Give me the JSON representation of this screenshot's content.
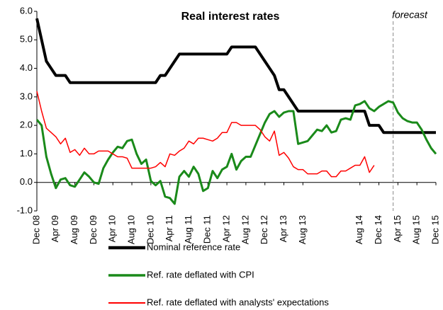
{
  "chart_data": {
    "type": "line",
    "title": "Real interest rates",
    "annotation": {
      "text": "forecast",
      "x": 75
    },
    "categories": [
      "Dec 08",
      null,
      null,
      null,
      "Apr 09",
      null,
      null,
      null,
      "Aug 09",
      null,
      null,
      null,
      "Dec 09",
      null,
      null,
      null,
      "Apr 10",
      null,
      null,
      null,
      "Aug 10",
      null,
      null,
      null,
      "Dec 10",
      null,
      null,
      null,
      "Apr 11",
      null,
      null,
      null,
      "Aug 11",
      null,
      null,
      null,
      "Dec 11",
      null,
      null,
      null,
      "Apr 12",
      null,
      null,
      null,
      "Aug 12",
      null,
      null,
      null,
      "Dec 12",
      null,
      null,
      null,
      "Apr 13",
      null,
      null,
      null,
      "Aug 13",
      null,
      null,
      null,
      null,
      null,
      null,
      null,
      null,
      null,
      null,
      null,
      "Aug 14",
      null,
      null,
      null,
      "Dec 14",
      null,
      null,
      null,
      "Apr 15",
      null,
      null,
      null,
      "Aug 15",
      null,
      null,
      null,
      "Dec 15"
    ],
    "series": [
      {
        "name": "Nominal reference rate",
        "color": "#000000",
        "width": 4,
        "values": [
          5.75,
          5.0,
          4.25,
          4.0,
          3.75,
          3.75,
          3.75,
          3.5,
          3.5,
          3.5,
          3.5,
          3.5,
          3.5,
          3.5,
          3.5,
          3.5,
          3.5,
          3.5,
          3.5,
          3.5,
          3.5,
          3.5,
          3.5,
          3.5,
          3.5,
          3.5,
          3.75,
          3.75,
          4.0,
          4.25,
          4.5,
          4.5,
          4.5,
          4.5,
          4.5,
          4.5,
          4.5,
          4.5,
          4.5,
          4.5,
          4.5,
          4.75,
          4.75,
          4.75,
          4.75,
          4.75,
          4.75,
          4.5,
          4.25,
          4.0,
          3.75,
          3.25,
          3.25,
          3.0,
          2.75,
          2.5,
          2.5,
          2.5,
          2.5,
          2.5,
          2.5,
          2.5,
          2.5,
          2.5,
          2.5,
          2.5,
          2.5,
          2.5,
          2.5,
          2.5,
          2.0,
          2.0,
          2.0,
          1.75,
          1.75,
          1.75,
          1.75,
          1.75,
          1.75,
          1.75,
          1.75,
          1.75,
          1.75,
          1.75,
          1.75
        ]
      },
      {
        "name": "Ref. rate deflated with CPI",
        "color": "#1a8a1a",
        "width": 3,
        "values": [
          2.2,
          2.0,
          0.9,
          0.3,
          -0.2,
          0.1,
          0.15,
          -0.1,
          -0.15,
          0.1,
          0.35,
          0.2,
          0.0,
          -0.05,
          0.5,
          0.8,
          1.05,
          1.25,
          1.2,
          1.45,
          1.5,
          1.0,
          0.65,
          0.8,
          0.05,
          -0.1,
          0.05,
          -0.5,
          -0.55,
          -0.75,
          0.2,
          0.4,
          0.2,
          0.55,
          0.3,
          -0.3,
          -0.2,
          0.4,
          0.15,
          0.45,
          0.55,
          1.0,
          0.45,
          0.75,
          0.9,
          0.9,
          1.3,
          1.7,
          2.1,
          2.4,
          2.5,
          2.3,
          2.45,
          2.5,
          2.5,
          1.35,
          1.4,
          1.45,
          1.65,
          1.85,
          1.8,
          2.0,
          1.75,
          1.8,
          2.2,
          2.25,
          2.2,
          2.7,
          2.75,
          2.85,
          2.6,
          2.5,
          2.65,
          2.75,
          2.85,
          2.8,
          2.45,
          2.25,
          2.15,
          2.1,
          2.1,
          1.85,
          1.5,
          1.2,
          1.0
        ]
      },
      {
        "name": "Ref. rate deflated with analysts' expectations",
        "color": "#ff0000",
        "width": 1.5,
        "values": [
          3.2,
          2.5,
          1.9,
          1.75,
          1.6,
          1.35,
          1.55,
          1.05,
          1.15,
          0.95,
          1.2,
          1.0,
          1.0,
          1.1,
          1.1,
          1.1,
          1.0,
          0.9,
          0.9,
          0.85,
          0.5,
          0.5,
          0.5,
          0.5,
          0.5,
          0.55,
          0.7,
          0.55,
          1.0,
          0.95,
          1.1,
          1.2,
          1.45,
          1.35,
          1.55,
          1.55,
          1.5,
          1.45,
          1.55,
          1.75,
          1.75,
          2.1,
          2.1,
          2.0,
          2.0,
          2.0,
          2.0,
          1.85,
          1.6,
          1.45,
          1.8,
          0.95,
          1.05,
          0.85,
          0.55,
          0.45,
          0.45,
          0.3,
          0.3,
          0.3,
          0.4,
          0.4,
          0.2,
          0.2,
          0.4,
          0.4,
          0.5,
          0.6,
          0.6,
          0.9,
          0.35,
          0.6,
          null,
          null,
          null,
          null,
          null,
          null,
          null,
          null,
          null,
          null,
          null,
          null,
          null
        ]
      }
    ],
    "ylim": [
      -1,
      6
    ],
    "yticks": [
      {
        "value": -1,
        "label": "-1.0"
      },
      {
        "value": 0,
        "label": "0.0"
      },
      {
        "value": 1,
        "label": "1.0"
      },
      {
        "value": 2,
        "label": "2.0"
      },
      {
        "value": 3,
        "label": "3.0"
      },
      {
        "value": 4,
        "label": "4.0"
      },
      {
        "value": 5,
        "label": "5.0"
      },
      {
        "value": 6,
        "label": "6.0"
      }
    ]
  }
}
